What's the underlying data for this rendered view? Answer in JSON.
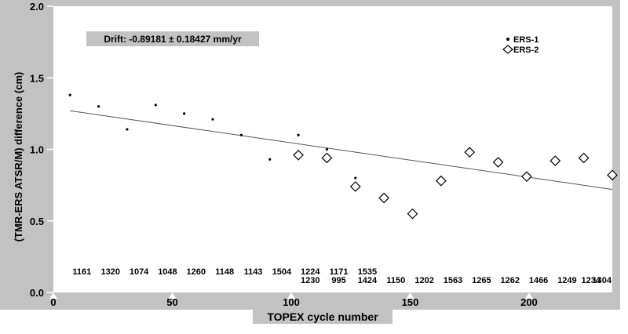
{
  "chart_data": {
    "type": "scatter",
    "xlabel": "TOPEX cycle number",
    "ylabel": "(TMR-ERS ATSR/M) difference (cm)",
    "xlim": [
      0,
      235
    ],
    "ylim": [
      0.0,
      2.0
    ],
    "xticks": [
      "0",
      "50",
      "100",
      "150",
      "200"
    ],
    "yticks": [
      "0.0",
      "0.5",
      "1.0",
      "1.5",
      "2.0"
    ],
    "annotation": "Drift: -0.89181 ± 0.18427 mm/yr",
    "legend_position": "top-right",
    "series": [
      {
        "name": "ERS-1",
        "marker": "dot",
        "x": [
          7,
          19,
          31,
          43,
          55,
          67,
          79,
          91,
          103,
          115,
          127
        ],
        "y": [
          1.38,
          1.3,
          1.14,
          1.31,
          1.25,
          1.21,
          1.1,
          0.93,
          1.1,
          1.0,
          0.8
        ]
      },
      {
        "name": "ERS-2",
        "marker": "diamond",
        "x": [
          103,
          115,
          127,
          139,
          151,
          163,
          175,
          187,
          199,
          211,
          223,
          235
        ],
        "y": [
          0.96,
          0.94,
          0.74,
          0.66,
          0.55,
          0.78,
          0.98,
          0.91,
          0.81,
          0.92,
          0.94,
          0.82
        ]
      }
    ],
    "trend_line": {
      "x": [
        7,
        235
      ],
      "y": [
        1.27,
        0.72
      ]
    },
    "count_labels_top": [
      {
        "x": 12,
        "text": "1161"
      },
      {
        "x": 24,
        "text": "1320"
      },
      {
        "x": 36,
        "text": "1074"
      },
      {
        "x": 48,
        "text": "1048"
      },
      {
        "x": 60,
        "text": "1260"
      },
      {
        "x": 72,
        "text": "1148"
      },
      {
        "x": 84,
        "text": "1143"
      },
      {
        "x": 96,
        "text": "1504"
      },
      {
        "x": 108,
        "text": "1224"
      },
      {
        "x": 120,
        "text": "1171"
      },
      {
        "x": 132,
        "text": "1535"
      }
    ],
    "count_labels_bottom": [
      {
        "x": 108,
        "text": "1230"
      },
      {
        "x": 120,
        "text": "995"
      },
      {
        "x": 132,
        "text": "1424"
      },
      {
        "x": 144,
        "text": "1150"
      },
      {
        "x": 156,
        "text": "1202"
      },
      {
        "x": 168,
        "text": "1563"
      },
      {
        "x": 180,
        "text": "1265"
      },
      {
        "x": 192,
        "text": "1262"
      },
      {
        "x": 204,
        "text": "1466"
      },
      {
        "x": 216,
        "text": "1249"
      },
      {
        "x": 226,
        "text": "1234"
      },
      {
        "x": 235,
        "text": "1304"
      }
    ]
  },
  "colors": {
    "frame": "#c2c2c2",
    "plot_bg": "#ffffff",
    "ink": "#000000",
    "trend": "#555555"
  }
}
